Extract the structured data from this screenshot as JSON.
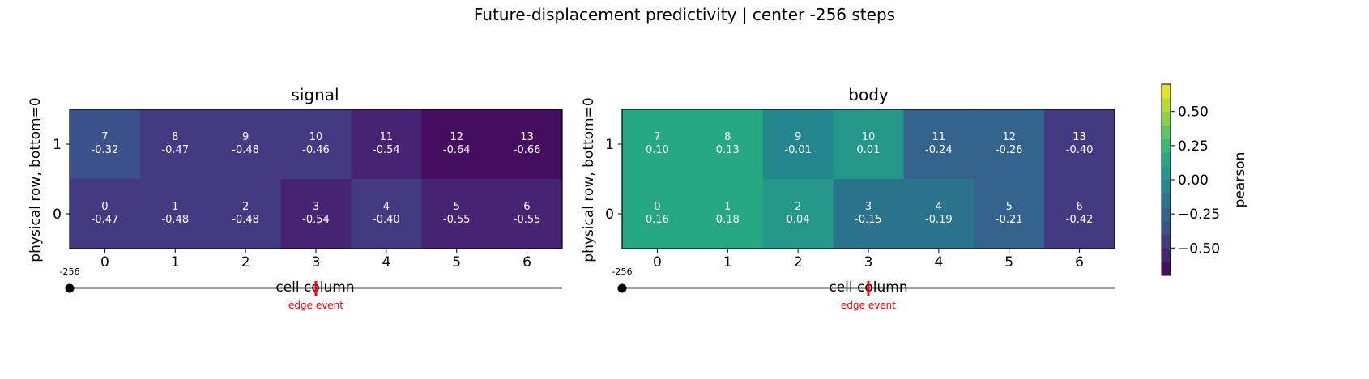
{
  "figure": {
    "title": "Future-displacement predictivity | center -256 steps"
  },
  "chart_data": [
    {
      "type": "heatmap",
      "title": "signal",
      "xlabel": "cell column",
      "ylabel": "physical row, bottom=0",
      "x_ticks": [
        "0",
        "1",
        "2",
        "3",
        "4",
        "5",
        "6"
      ],
      "y_ticks": [
        "0",
        "1"
      ],
      "rows": [
        {
          "row": 1,
          "cells": [
            {
              "id": "7",
              "value": -0.32
            },
            {
              "id": "8",
              "value": -0.47
            },
            {
              "id": "9",
              "value": -0.48
            },
            {
              "id": "10",
              "value": -0.46
            },
            {
              "id": "11",
              "value": -0.54
            },
            {
              "id": "12",
              "value": -0.64
            },
            {
              "id": "13",
              "value": -0.66
            }
          ]
        },
        {
          "row": 0,
          "cells": [
            {
              "id": "0",
              "value": -0.47
            },
            {
              "id": "1",
              "value": -0.48
            },
            {
              "id": "2",
              "value": -0.48
            },
            {
              "id": "3",
              "value": -0.54
            },
            {
              "id": "4",
              "value": -0.4
            },
            {
              "id": "5",
              "value": -0.55
            },
            {
              "id": "6",
              "value": -0.55
            }
          ]
        }
      ],
      "timeline": {
        "start_label": "-256",
        "marker_label": "edge event",
        "marker_column": 3
      }
    },
    {
      "type": "heatmap",
      "title": "body",
      "xlabel": "cell column",
      "ylabel": "physical row, bottom=0",
      "x_ticks": [
        "0",
        "1",
        "2",
        "3",
        "4",
        "5",
        "6"
      ],
      "y_ticks": [
        "0",
        "1"
      ],
      "rows": [
        {
          "row": 1,
          "cells": [
            {
              "id": "7",
              "value": 0.1
            },
            {
              "id": "8",
              "value": 0.13
            },
            {
              "id": "9",
              "value": -0.01
            },
            {
              "id": "10",
              "value": 0.01
            },
            {
              "id": "11",
              "value": -0.24
            },
            {
              "id": "12",
              "value": -0.26
            },
            {
              "id": "13",
              "value": -0.4
            }
          ]
        },
        {
          "row": 0,
          "cells": [
            {
              "id": "0",
              "value": 0.16
            },
            {
              "id": "1",
              "value": 0.18
            },
            {
              "id": "2",
              "value": 0.04
            },
            {
              "id": "3",
              "value": -0.15
            },
            {
              "id": "4",
              "value": -0.19
            },
            {
              "id": "5",
              "value": -0.21
            },
            {
              "id": "6",
              "value": -0.42
            }
          ]
        }
      ],
      "timeline": {
        "start_label": "-256",
        "marker_label": "edge event",
        "marker_column": 3
      }
    }
  ],
  "colorbar": {
    "label": "pearson",
    "colormap": "viridis",
    "range": [
      -0.7,
      0.7
    ],
    "discrete_levels": 14,
    "ticks": [
      {
        "value": 0.5,
        "label": "0.50"
      },
      {
        "value": 0.25,
        "label": "0.25"
      },
      {
        "value": 0.0,
        "label": "0.00"
      },
      {
        "value": -0.25,
        "label": "−0.25"
      },
      {
        "value": -0.5,
        "label": "−0.50"
      }
    ]
  },
  "colors": {
    "marker_red": "#ff0000",
    "timeline_gray": "#808080",
    "cell_text": "#ffffff"
  }
}
